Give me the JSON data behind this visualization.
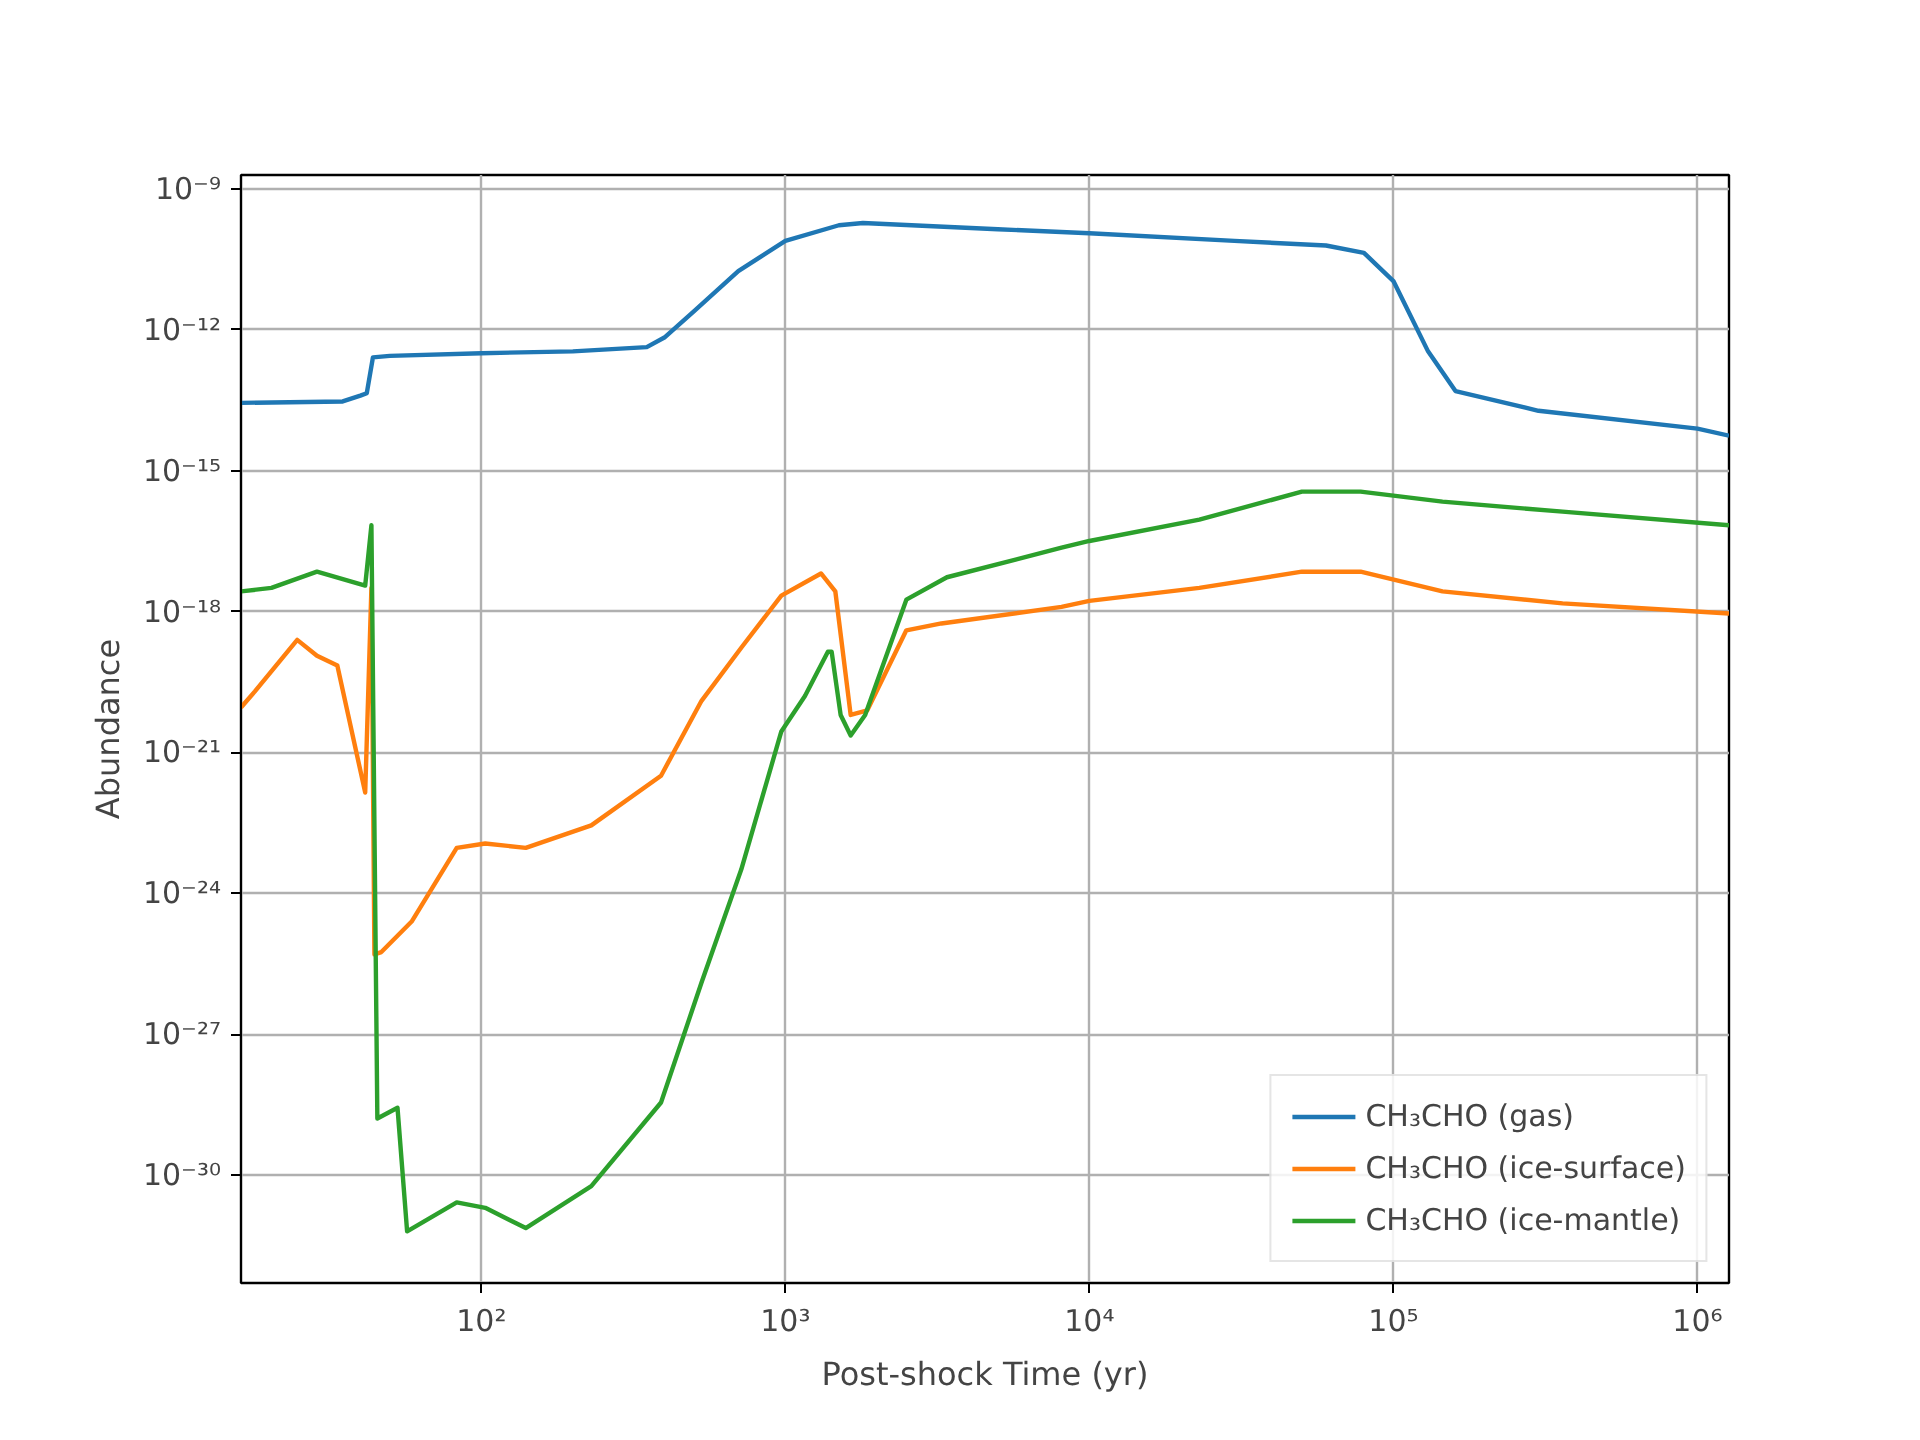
{
  "chart_data": {
    "type": "line",
    "xlabel": "Post-shock Time (yr)",
    "ylabel": "Abundance",
    "log": "xy",
    "grid": true,
    "legend": "bottom right",
    "line_style": "solid",
    "marker": "none",
    "xlim": [
      16.2,
      1270000
    ],
    "ylim": [
      5e-33,
      2e-09
    ],
    "xticks": [
      {
        "value": 100,
        "label": "10²"
      },
      {
        "value": 1000,
        "label": "10³"
      },
      {
        "value": 10000,
        "label": "10⁴"
      },
      {
        "value": 100000,
        "label": "10⁵"
      },
      {
        "value": 1000000,
        "label": "10⁶"
      }
    ],
    "yticks": [
      {
        "value": 1e-09,
        "label": "10⁻⁹"
      },
      {
        "value": 1e-12,
        "label": "10⁻¹²"
      },
      {
        "value": 1e-15,
        "label": "10⁻¹⁵"
      },
      {
        "value": 1e-18,
        "label": "10⁻¹⁸"
      },
      {
        "value": 1e-21,
        "label": "10⁻²¹"
      },
      {
        "value": 1e-24,
        "label": "10⁻²⁴"
      },
      {
        "value": 1e-27,
        "label": "10⁻²⁷"
      },
      {
        "value": 1e-30,
        "label": "10⁻³⁰"
      }
    ],
    "series": [
      {
        "name": "CH₃CHO (gas)",
        "color": "#1f77b4",
        "x": [
          16.2,
          35,
          40,
          42,
          44,
          50,
          100,
          200,
          350,
          400,
          500,
          700,
          1000,
          1500,
          1800,
          5000,
          10000,
          30000,
          60000,
          80000,
          100000,
          130000,
          160000,
          300000,
          1000000,
          1270000
        ],
        "values": [
          2.8e-14,
          3e-14,
          4e-14,
          4.5e-14,
          2.6e-13,
          2.8e-13,
          3.2e-13,
          3.5e-13,
          4.3e-13,
          6.9e-13,
          2.5e-12,
          1.8e-11,
          7.9e-11,
          1.7e-10,
          1.9e-10,
          1.4e-10,
          1.15e-10,
          7.9e-11,
          6.3e-11,
          4.4e-11,
          1.1e-11,
          3.5e-13,
          5e-14,
          1.9e-14,
          7.9e-15,
          5.6e-15
        ]
      },
      {
        "name": "CH₃CHO (ice-surface)",
        "color": "#ff7f0e",
        "x": [
          16.2,
          18,
          24.8,
          28.8,
          33.6,
          41.5,
          43.5,
          44.5,
          46.9,
          59,
          83,
          103,
          140,
          230,
          390,
          530,
          716,
          970,
          1310,
          1460,
          1640,
          1860,
          2500,
          3260,
          8100,
          10000,
          23000,
          50000,
          78000,
          145000,
          360000,
          1270000
        ],
        "values": [
          9.1e-21,
          2e-20,
          2.5e-19,
          1.15e-19,
          7.1e-20,
          1.4e-22,
          3.2e-18,
          5e-26,
          5.6e-26,
          2.5e-25,
          9.3e-24,
          1.15e-23,
          9.3e-24,
          2.8e-23,
          3.2e-22,
          1.26e-20,
          1.7e-19,
          2.2e-18,
          6.5e-18,
          2.7e-18,
          6.3e-21,
          7.9e-21,
          4e-19,
          5.6e-19,
          1.26e-18,
          1.7e-18,
          3.2e-18,
          7.1e-18,
          7.1e-18,
          2.7e-18,
          1.5e-18,
          9.1e-19
        ]
      },
      {
        "name": "CH₃CHO (ice-mantle)",
        "color": "#2ca02c",
        "x": [
          16.2,
          20.4,
          28.8,
          41.5,
          43.5,
          45.5,
          53,
          57,
          83,
          103,
          140,
          230,
          390,
          530,
          716,
          970,
          1160,
          1380,
          1420,
          1520,
          1640,
          1830,
          2500,
          3400,
          8100,
          10000,
          23000,
          50000,
          78000,
          145000,
          360000,
          1270000
        ],
        "values": [
          2.7e-18,
          3.2e-18,
          7.1e-18,
          3.6e-18,
          6.9e-17,
          1.6e-29,
          2.7e-29,
          6.3e-32,
          2.6e-31,
          2e-31,
          7.4e-32,
          5.8e-31,
          3.5e-29,
          1.26e-26,
          3.2e-24,
          2.8e-21,
          1.6e-20,
          1.4e-19,
          1.4e-19,
          6.3e-21,
          2.3e-21,
          6.3e-21,
          1.8e-18,
          5.4e-18,
          2.3e-17,
          3.2e-17,
          9.1e-17,
          3.6e-16,
          3.6e-16,
          2.2e-16,
          1.35e-16,
          6.9e-17
        ]
      }
    ]
  }
}
